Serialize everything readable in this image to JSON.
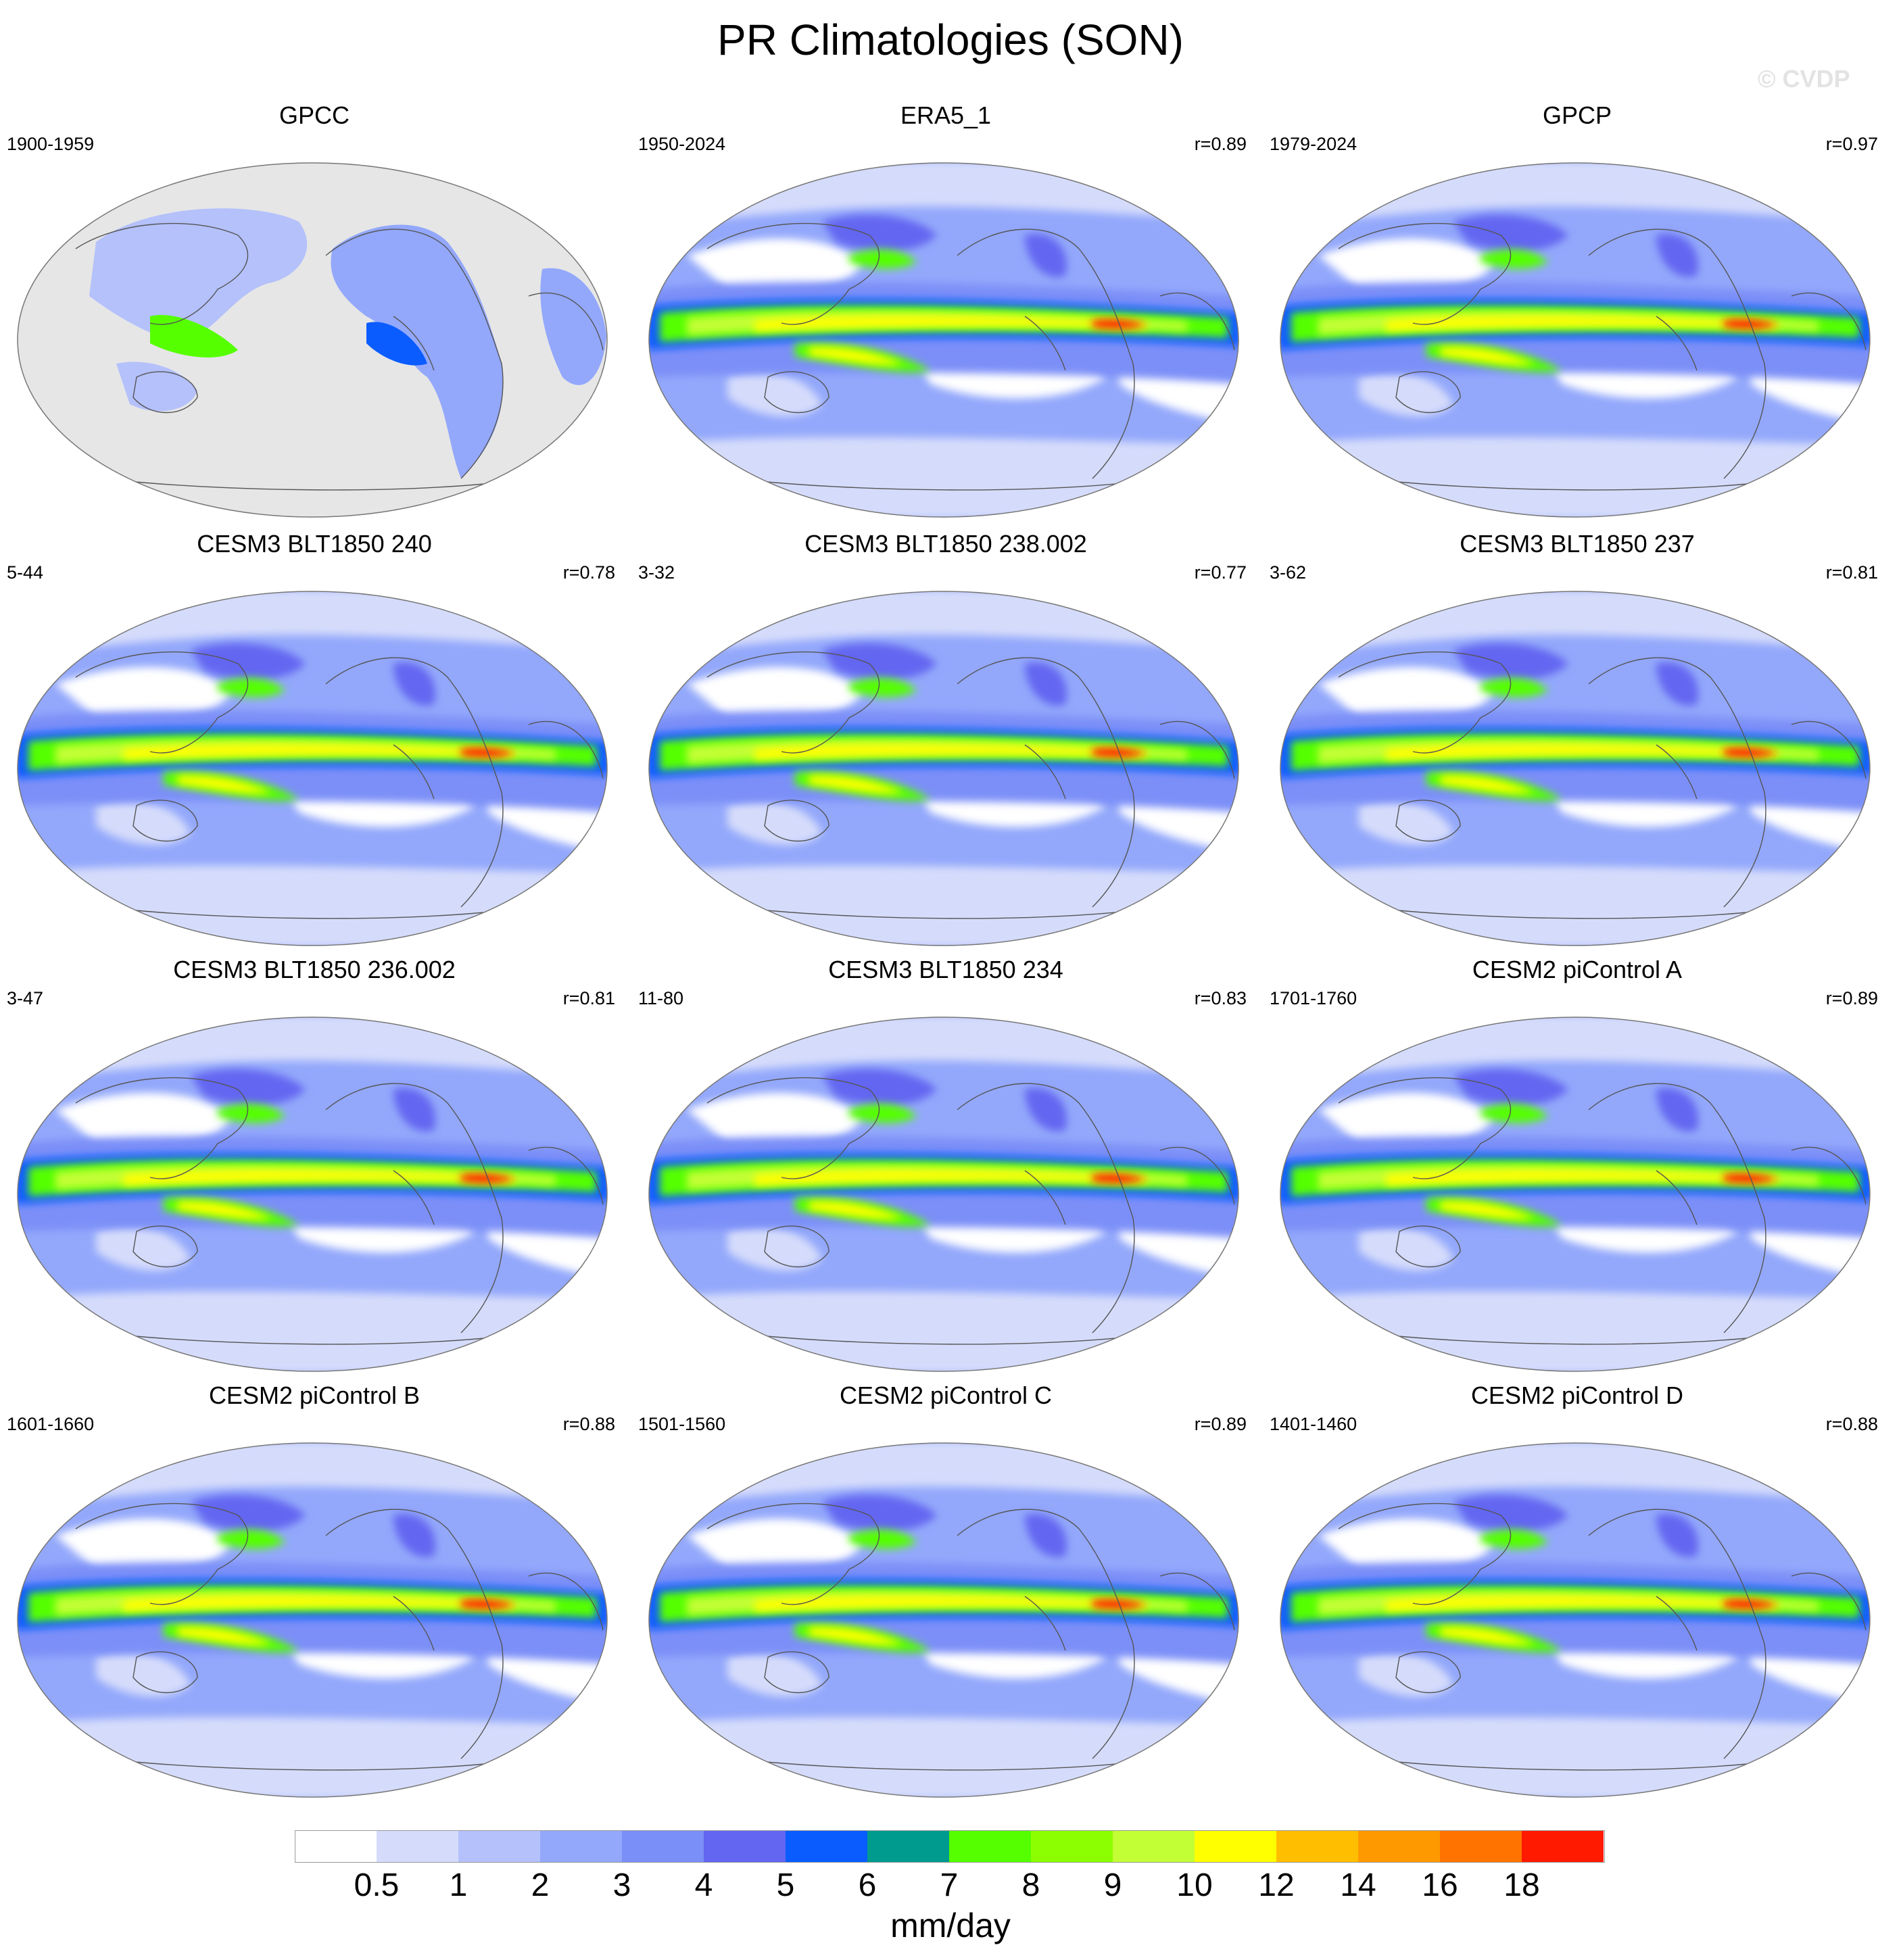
{
  "title": "PR Climatologies (SON)",
  "watermark": "© CVDP",
  "panels": [
    {
      "title": "GPCC",
      "period": "1900-1959",
      "corr": "",
      "mask": true
    },
    {
      "title": "ERA5_1",
      "period": "1950-2024",
      "corr": "r=0.89",
      "mask": false
    },
    {
      "title": "GPCP",
      "period": "1979-2024",
      "corr": "r=0.97",
      "mask": false
    },
    {
      "title": "CESM3 BLT1850 240",
      "period": "5-44",
      "corr": "r=0.78",
      "mask": false
    },
    {
      "title": "CESM3 BLT1850 238.002",
      "period": "3-32",
      "corr": "r=0.77",
      "mask": false
    },
    {
      "title": "CESM3 BLT1850 237",
      "period": "3-62",
      "corr": "r=0.81",
      "mask": false
    },
    {
      "title": "CESM3 BLT1850 236.002",
      "period": "3-47",
      "corr": "r=0.81",
      "mask": false
    },
    {
      "title": "CESM3 BLT1850 234",
      "period": "11-80",
      "corr": "r=0.83",
      "mask": false
    },
    {
      "title": "CESM2 piControl A",
      "period": "1701-1760",
      "corr": "r=0.89",
      "mask": false
    },
    {
      "title": "CESM2 piControl B",
      "period": "1601-1660",
      "corr": "r=0.88",
      "mask": false
    },
    {
      "title": "CESM2 piControl C",
      "period": "1501-1560",
      "corr": "r=0.89",
      "mask": false
    },
    {
      "title": "CESM2 piControl D",
      "period": "1401-1460",
      "corr": "r=0.88",
      "mask": false
    }
  ],
  "colorbar": {
    "units": "mm/day",
    "labels": [
      "0.5",
      "1",
      "2",
      "3",
      "4",
      "5",
      "6",
      "7",
      "8",
      "9",
      "10",
      "12",
      "14",
      "16",
      "18"
    ],
    "colors": [
      "#ffffff",
      "#d5dcfb",
      "#b4c1fb",
      "#93a8fb",
      "#7b8ff8",
      "#6366f1",
      "#0a5cff",
      "#009b8f",
      "#55ff00",
      "#8cff00",
      "#c3ff35",
      "#ffff00",
      "#ffbe00",
      "#ff9900",
      "#ff7300",
      "#ff1a00"
    ]
  }
}
